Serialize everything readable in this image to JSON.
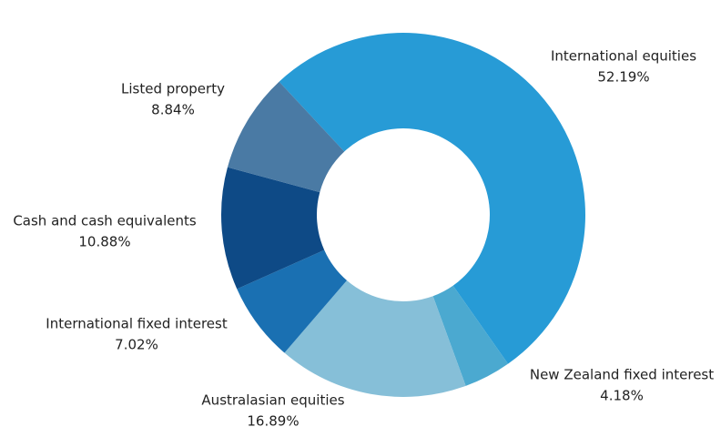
{
  "chart_data": {
    "type": "pie",
    "categories": [
      "International equities",
      "New Zealand fixed interest",
      "Australasian equities",
      "International fixed interest",
      "Cash and cash equivalents",
      "Listed property"
    ],
    "values": [
      52.19,
      4.18,
      16.89,
      7.02,
      10.88,
      8.84
    ],
    "value_labels": [
      "52.19%",
      "4.18%",
      "16.89%",
      "7.02%",
      "10.88%",
      "8.84%"
    ],
    "colors": [
      "#279bd6",
      "#4ba9d0",
      "#86bfd8",
      "#1a70b2",
      "#0e4a86",
      "#4a7aa4"
    ]
  }
}
